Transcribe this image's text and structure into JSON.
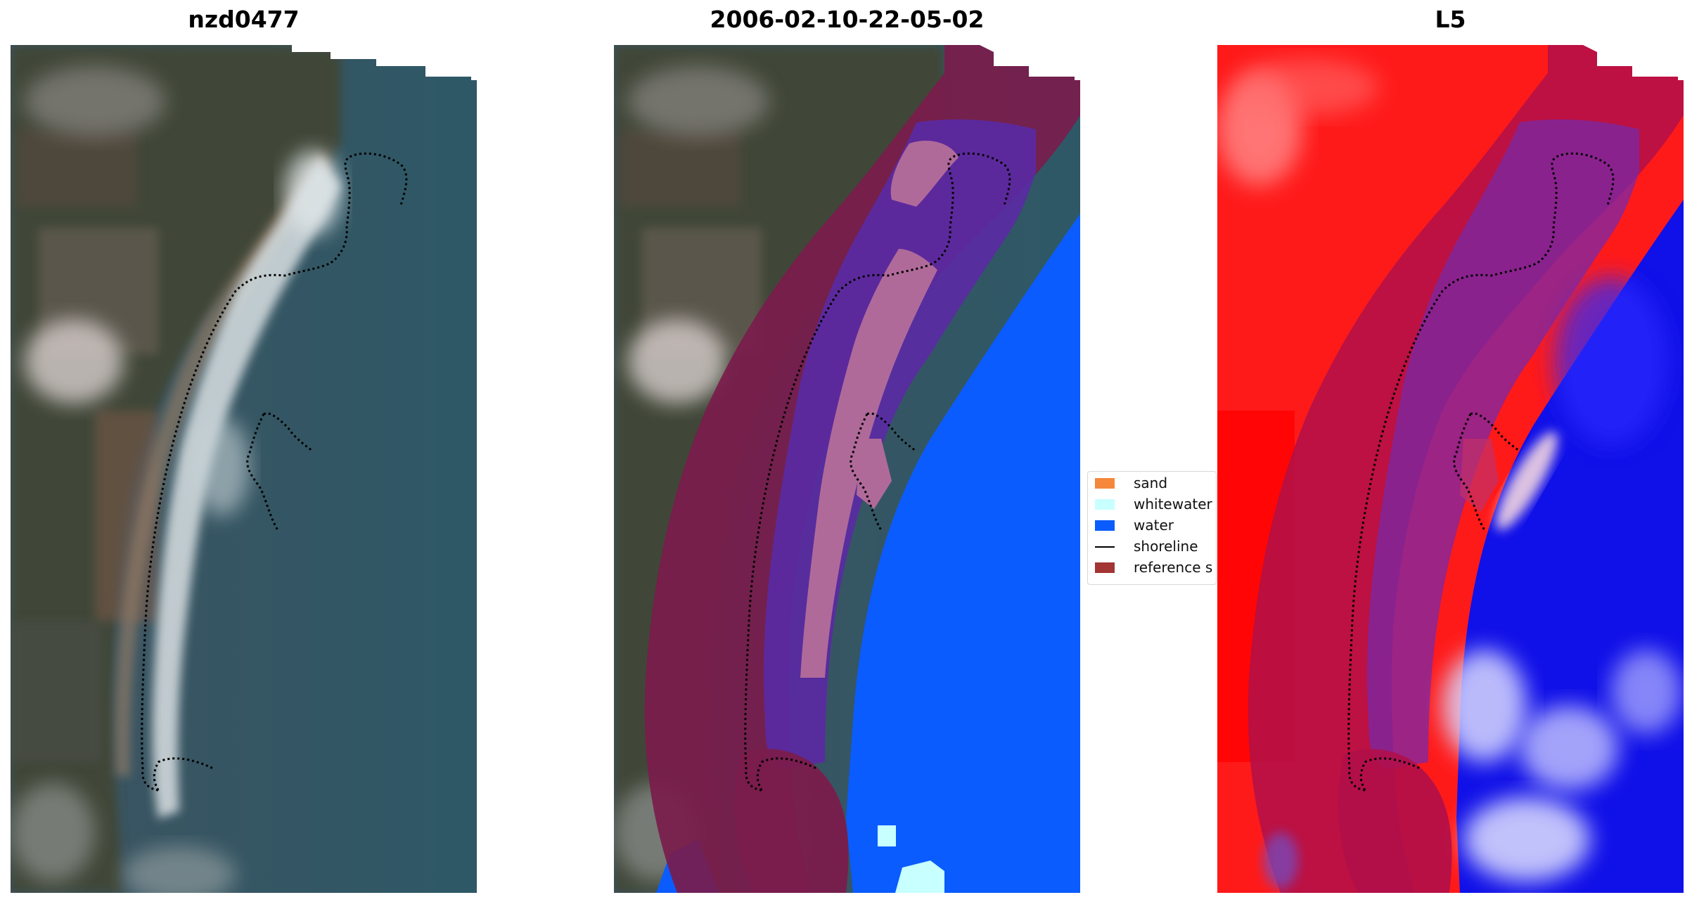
{
  "titles": {
    "left": "nzd0477",
    "middle": "2006-02-10-22-05-02",
    "right": "L5"
  },
  "legend": {
    "items": [
      {
        "label": "sand",
        "color": "#f5883a",
        "kind": "patch"
      },
      {
        "label": "whitewater",
        "color": "#c8ffff",
        "kind": "patch"
      },
      {
        "label": "water",
        "color": "#0a5cff",
        "kind": "patch"
      },
      {
        "label": "shoreline",
        "color": "#000000",
        "kind": "line"
      },
      {
        "label": "reference s",
        "color": "#a33535",
        "kind": "patch"
      }
    ]
  },
  "colors": {
    "land_dark": "#3c4136",
    "water_dark": "#2f5866",
    "reference_band": "#8a1f4b",
    "water_class": "#0a5cff",
    "whitewater_class": "#c8ffff",
    "index_positive": "#ff1a1a",
    "index_negative": "#1010e8"
  }
}
